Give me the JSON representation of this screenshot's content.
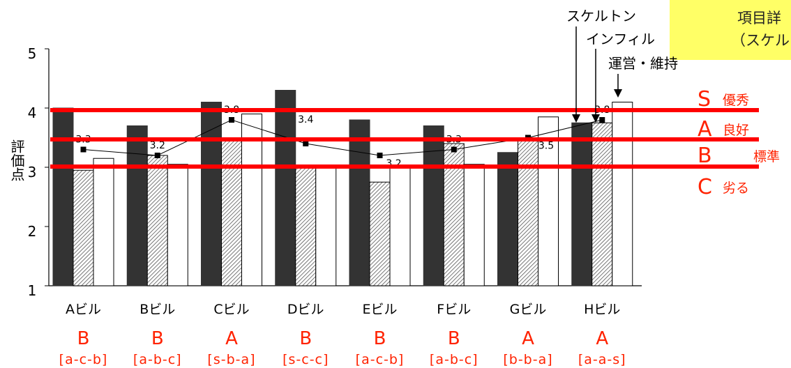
{
  "colors": {
    "skeleton": "#333333",
    "infill_hatch": "#666666",
    "maintenance": "#ffffff",
    "rating_line": "#ff0000",
    "rating_text": "#ff2200",
    "legend_bg": "#ffff66"
  },
  "legend_box": {
    "line1": "項目詳",
    "line2": "（スケル"
  },
  "annotations": {
    "skeleton": "スケルトン",
    "infill": "インフィル",
    "maintenance": "運営・維持"
  },
  "ratings": [
    {
      "grade": "S",
      "label": "優秀",
      "value": 4.0
    },
    {
      "grade": "A",
      "label": "良好",
      "value": 3.5
    },
    {
      "grade": "B",
      "label": "標準",
      "value": 3.0
    },
    {
      "grade": "C",
      "label": "劣る",
      "value": null
    }
  ],
  "chart_data": {
    "type": "bar",
    "ylabel": "評価点",
    "ylim": [
      1,
      5
    ],
    "yticks": [
      1,
      2,
      3,
      4,
      5
    ],
    "grid": false,
    "categories": [
      "Aビル",
      "Bビル",
      "Cビル",
      "Dビル",
      "Eビル",
      "Fビル",
      "Gビル",
      "Hビル"
    ],
    "series": [
      {
        "name": "スケルトン",
        "type": "bar",
        "values": [
          4.0,
          3.7,
          4.1,
          4.3,
          3.8,
          3.7,
          3.25,
          3.75
        ]
      },
      {
        "name": "インフィル",
        "type": "bar",
        "values": [
          2.95,
          3.2,
          3.5,
          3.0,
          2.75,
          3.4,
          3.5,
          3.75
        ]
      },
      {
        "name": "運営・維持",
        "type": "bar",
        "values": [
          3.15,
          3.05,
          3.9,
          3.0,
          3.0,
          3.05,
          3.85,
          4.1
        ]
      },
      {
        "type": "line",
        "values": [
          3.3,
          3.2,
          3.8,
          3.4,
          3.2,
          3.3,
          3.5,
          3.8
        ],
        "labels": [
          "3.3",
          "3.2",
          "3.8",
          "3.4",
          "3.2",
          "3.3",
          "3.5",
          "3.8"
        ]
      }
    ],
    "grades": [
      "B",
      "B",
      "A",
      "B",
      "B",
      "B",
      "A",
      "A"
    ],
    "codes": [
      "[a-c-b]",
      "[a-b-c]",
      "[s-b-a]",
      "[s-c-c]",
      "[a-c-b]",
      "[a-b-c]",
      "[b-b-a]",
      "[a-a-s]"
    ]
  }
}
